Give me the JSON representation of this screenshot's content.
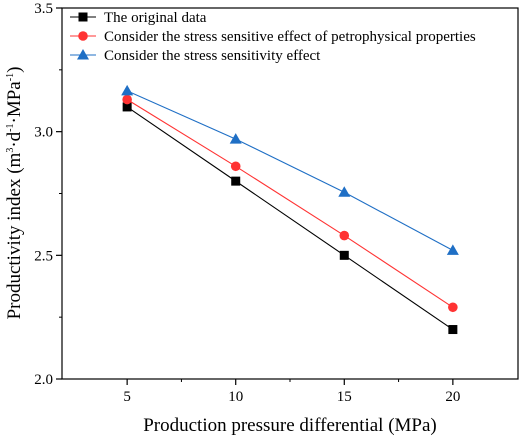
{
  "chart_data": {
    "type": "line",
    "x": [
      5,
      10,
      15,
      20
    ],
    "xlabel": "Production pressure differential (MPa)",
    "ylabel": {
      "base": "Productivity index (m",
      "sup1": "3",
      "mid1": "·d",
      "sup2": "-1",
      "mid2": "·MPa",
      "sup3": "-1",
      "end": ")"
    },
    "xlim": [
      2,
      23
    ],
    "ylim": [
      2.0,
      3.5
    ],
    "xticks": [
      "5",
      "10",
      "15",
      "20"
    ],
    "yticks": [
      "2.0",
      "2.5",
      "3.0",
      "3.5"
    ],
    "grid": false,
    "legend_position": "top-left",
    "series": [
      {
        "name": "The original data",
        "color": "#000000",
        "marker": "square",
        "values": [
          3.1,
          2.8,
          2.5,
          2.2
        ]
      },
      {
        "name": "Consider the stress sensitive effect of petrophysical properties",
        "color": "#ff3333",
        "marker": "circle",
        "values": [
          3.13,
          2.86,
          2.58,
          2.29
        ]
      },
      {
        "name": "Consider the stress sensitivity effect",
        "color": "#1f6fc5",
        "marker": "triangle",
        "values": [
          3.165,
          2.97,
          2.755,
          2.52
        ]
      }
    ]
  }
}
